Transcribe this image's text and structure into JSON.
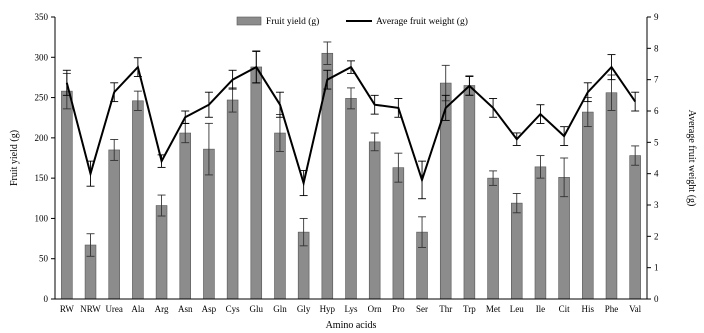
{
  "chart_data": {
    "type": "bar",
    "categories": [
      "RW",
      "NRW",
      "Urea",
      "Ala",
      "Arg",
      "Asn",
      "Asp",
      "Cys",
      "Glu",
      "Gln",
      "Gly",
      "Hyp",
      "Lys",
      "Orn",
      "Pro",
      "Ser",
      "Thr",
      "Trp",
      "Met",
      "Leu",
      "Ile",
      "Cit",
      "His",
      "Phe",
      "Val"
    ],
    "series": [
      {
        "name": "Fruit yield (g)",
        "type": "bar",
        "axis": "left",
        "color": "#8c8c8c",
        "values": [
          258,
          67,
          185,
          246,
          116,
          206,
          186,
          247,
          288,
          206,
          83,
          305,
          249,
          195,
          163,
          83,
          268,
          265,
          150,
          119,
          164,
          151,
          232,
          256,
          178
        ],
        "errors": [
          22,
          14,
          13,
          12,
          13,
          12,
          32,
          15,
          20,
          23,
          17,
          14,
          13,
          11,
          18,
          19,
          22,
          12,
          9,
          12,
          14,
          24,
          18,
          22,
          12
        ]
      },
      {
        "name": "Average fruit weight (g)",
        "type": "line",
        "axis": "right",
        "color": "#000000",
        "values": [
          6.9,
          4.0,
          6.6,
          7.4,
          4.4,
          5.8,
          6.2,
          7.0,
          7.4,
          6.2,
          3.7,
          7.0,
          7.4,
          6.2,
          6.1,
          3.8,
          6.1,
          6.8,
          6.1,
          5.1,
          5.9,
          5.2,
          6.6,
          7.4,
          6.3
        ],
        "errors": [
          0.4,
          0.4,
          0.3,
          0.3,
          0.2,
          0.2,
          0.4,
          0.3,
          0.5,
          0.4,
          0.4,
          0.3,
          0.2,
          0.3,
          0.3,
          0.6,
          0.4,
          0.3,
          0.3,
          0.2,
          0.3,
          0.3,
          0.3,
          0.4,
          0.3
        ]
      }
    ],
    "xlabel": "Amino acids",
    "ylabel": "Fruit yield (g)",
    "y2label": "Average fruit weight (g)",
    "ylim": [
      0,
      350
    ],
    "y2lim": [
      0,
      9
    ],
    "yticks": [
      0,
      50,
      100,
      150,
      200,
      250,
      300,
      350
    ],
    "y2ticks": [
      0,
      1,
      2,
      3,
      4,
      5,
      6,
      7,
      8,
      9
    ],
    "grid": false,
    "legend_position": "top-center",
    "legend": [
      "Fruit yield (g)",
      "Average fruit weight (g)"
    ]
  }
}
